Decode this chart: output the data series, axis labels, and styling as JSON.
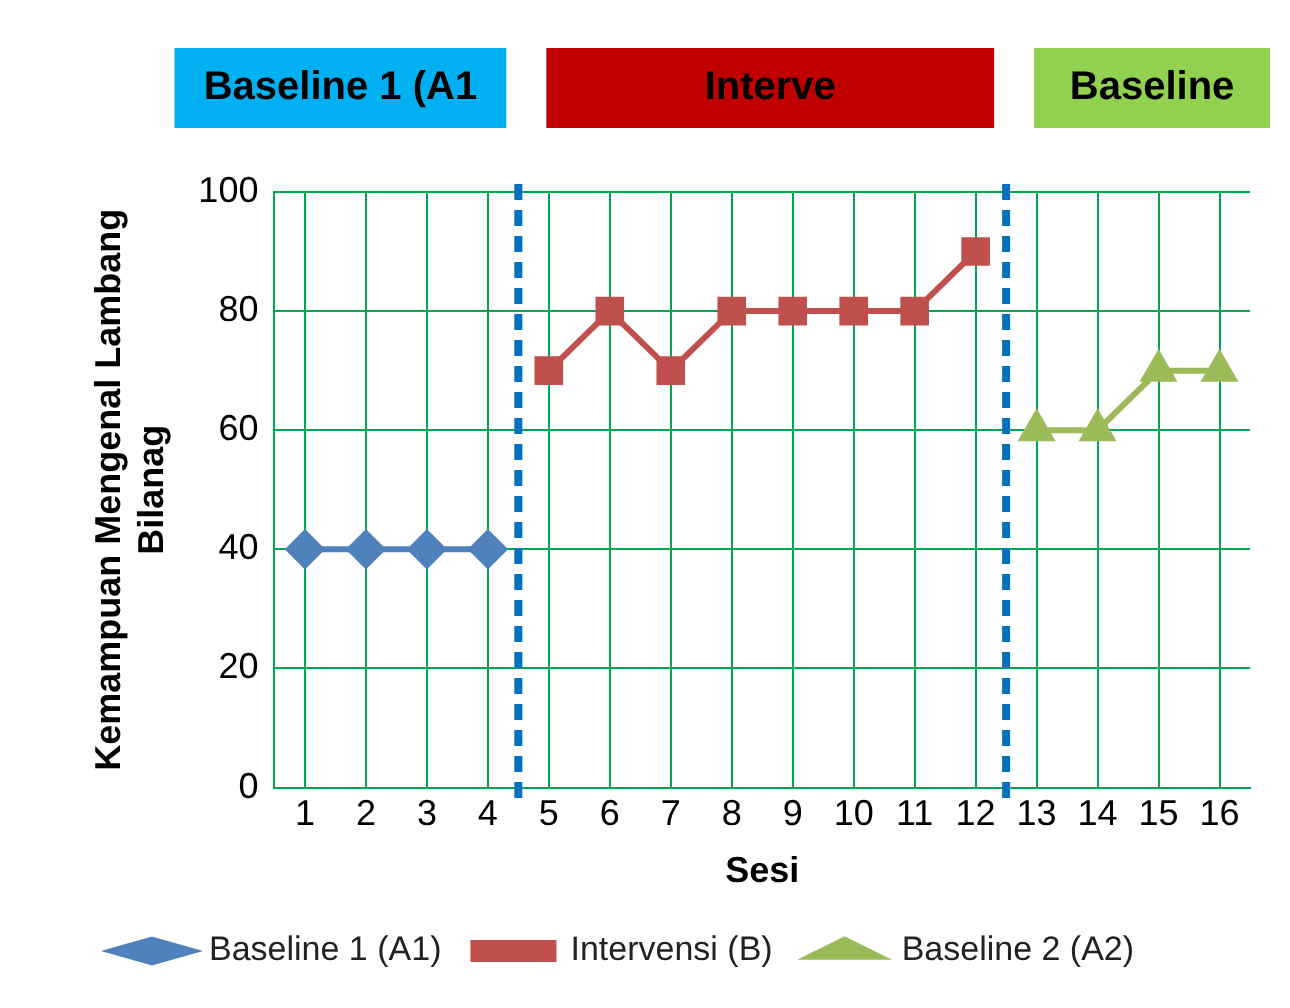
{
  "chart_data": {
    "type": "line",
    "xlabel": "Sesi",
    "ylabel": "Kemampuan Mengenal Lambang Bilanag",
    "x": [
      1,
      2,
      3,
      4,
      5,
      6,
      7,
      8,
      9,
      10,
      11,
      12,
      13,
      14,
      15,
      16
    ],
    "xlim": [
      0.5,
      16.5
    ],
    "xticks": [
      1,
      2,
      3,
      4,
      5,
      6,
      7,
      8,
      9,
      10,
      11,
      12,
      13,
      14,
      15,
      16
    ],
    "ylim": [
      0,
      100
    ],
    "yticks": [
      0,
      20,
      40,
      60,
      80,
      100
    ],
    "grid": true,
    "legend": "bottom",
    "series": [
      {
        "name": "Baseline 1 (A1)",
        "color": "#4f81bd",
        "marker": "diamond",
        "values": [
          40,
          40,
          40,
          40,
          null,
          null,
          null,
          null,
          null,
          null,
          null,
          null,
          null,
          null,
          null,
          null
        ]
      },
      {
        "name": "Intervensi (B)",
        "color": "#c0504d",
        "marker": "square",
        "values": [
          null,
          null,
          null,
          null,
          70,
          80,
          70,
          80,
          80,
          80,
          80,
          90,
          null,
          null,
          null,
          null
        ]
      },
      {
        "name": "Baseline 2 (A2)",
        "color": "#9bbb59",
        "marker": "triangle",
        "values": [
          null,
          null,
          null,
          null,
          null,
          null,
          null,
          null,
          null,
          null,
          null,
          null,
          60,
          60,
          70,
          70
        ]
      }
    ],
    "ref_lines": [
      {
        "axis": "x",
        "value": 4.5,
        "color": "#0070c0",
        "line_style": "dashed"
      },
      {
        "axis": "x",
        "value": 12.5,
        "color": "#0070c0",
        "line_style": "dashed"
      }
    ],
    "annotations": [
      "Baseline 1 (A1",
      "Interve",
      "Baseline"
    ]
  }
}
